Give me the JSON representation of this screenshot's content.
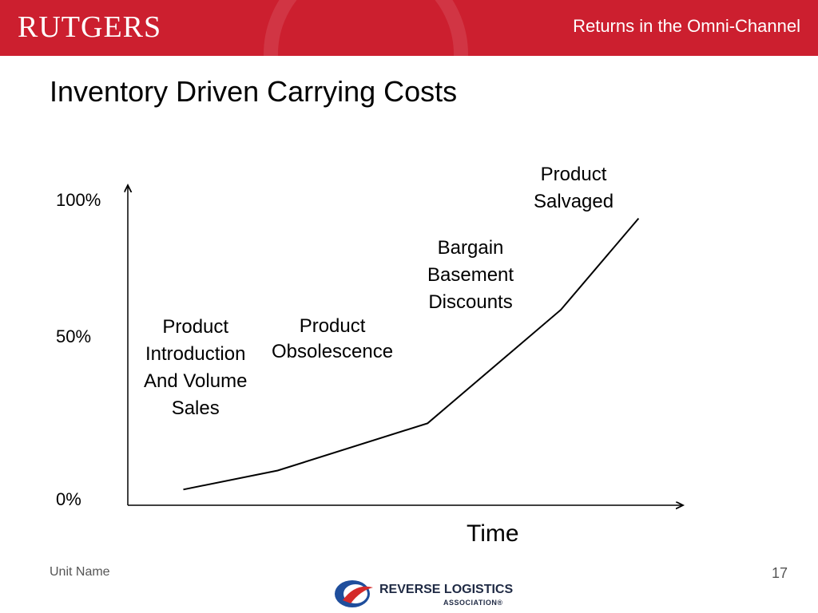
{
  "header": {
    "logo": "RUTGERS",
    "title": "Returns in the Omni-Channel"
  },
  "slide": {
    "title": "Inventory Driven Carrying Costs"
  },
  "chart_data": {
    "type": "line",
    "x": [
      0.1,
      0.27,
      0.54,
      0.78,
      0.92
    ],
    "y": [
      5,
      11,
      26,
      62,
      91
    ],
    "ylim": [
      0,
      100
    ],
    "xlim": [
      0,
      1
    ],
    "y_ticks": [
      "100%",
      "50%",
      "0%"
    ],
    "xlabel": "Time",
    "ylabel": "",
    "grid": false,
    "annotations": [
      {
        "lines": [
          "Product",
          "Introduction",
          "And Volume",
          "Sales"
        ]
      },
      {
        "lines": [
          "Product",
          "Obsolescence"
        ]
      },
      {
        "lines": [
          "Bargain",
          "Basement",
          "Discounts"
        ]
      },
      {
        "lines": [
          "Product",
          "Salvaged"
        ]
      }
    ]
  },
  "footer": {
    "unit": "Unit Name",
    "page": "17",
    "logo_name": "REVERSE LOGISTICS",
    "logo_sub": "ASSOCIATION®"
  }
}
